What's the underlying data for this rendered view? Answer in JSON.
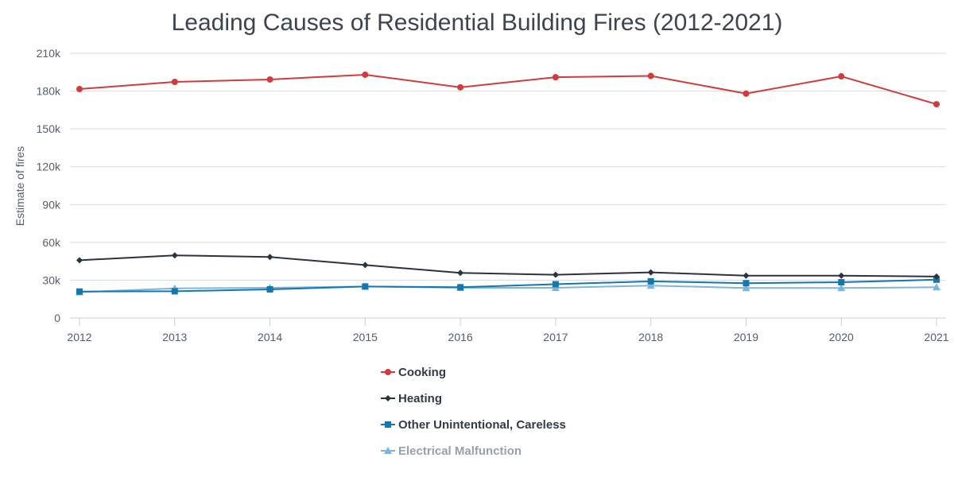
{
  "chart_data": {
    "type": "line",
    "title": "Leading Causes of Residential Building Fires (2012-2021)",
    "xlabel": "",
    "ylabel": "Estimate of fires",
    "ylim": [
      0,
      210000
    ],
    "yticks": [
      0,
      30000,
      60000,
      90000,
      120000,
      150000,
      180000,
      210000
    ],
    "ytick_labels": [
      "0",
      "30k",
      "60k",
      "90k",
      "120k",
      "150k",
      "180k",
      "210k"
    ],
    "x": [
      "2012",
      "2013",
      "2014",
      "2015",
      "2016",
      "2017",
      "2018",
      "2019",
      "2020",
      "2021"
    ],
    "grid": "horizontal",
    "legend_position": "bottom",
    "series": [
      {
        "name": "Cooking",
        "color": "#d13b3b",
        "marker": "circle",
        "values": [
          181600,
          187300,
          189200,
          193000,
          183000,
          191000,
          192000,
          178000,
          191700,
          169600
        ]
      },
      {
        "name": "Heating",
        "color": "#2b3340",
        "marker": "diamond",
        "values": [
          45800,
          49700,
          48400,
          42000,
          35800,
          34300,
          36200,
          33600,
          33600,
          32900
        ]
      },
      {
        "name": "Other Unintentional, Careless",
        "color": "#1478b0",
        "marker": "square",
        "values": [
          21000,
          21200,
          22700,
          25000,
          24400,
          26800,
          29100,
          27600,
          28400,
          30400
        ]
      },
      {
        "name": "Electrical Malfunction",
        "color": "#7fb5d9",
        "marker": "triangle",
        "legend_text_color": "#9aa0a8",
        "values": [
          20500,
          23500,
          24000,
          25000,
          24000,
          24000,
          25700,
          23800,
          23800,
          24400
        ]
      }
    ]
  }
}
